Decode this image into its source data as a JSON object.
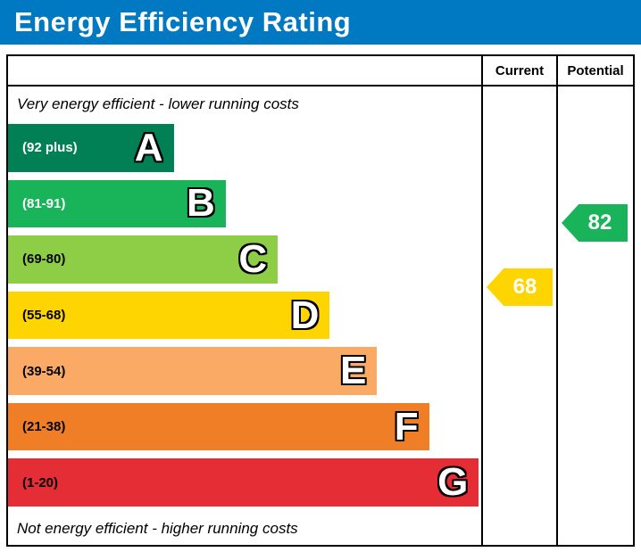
{
  "title_bar": {
    "label": "Energy Efficiency Rating",
    "color": "#0079c2",
    "style": "background:#0079c2"
  },
  "header": {
    "current": "Current",
    "potential": "Potential"
  },
  "notes": {
    "top": "Very energy efficient - lower running costs",
    "bottom": "Not energy efficient - higher running costs"
  },
  "bands": [
    {
      "letter": "A",
      "range": "(92 plus)",
      "color": "#008054",
      "bar_style": "width:35%;background:#008054;color:#ffffff"
    },
    {
      "letter": "B",
      "range": "(81-91)",
      "color": "#19b459",
      "bar_style": "width:46%;background:#19b459;color:#ffffff"
    },
    {
      "letter": "C",
      "range": "(69-80)",
      "color": "#8dce46",
      "bar_style": "width:57%;background:#8dce46;color:#000000"
    },
    {
      "letter": "D",
      "range": "(55-68)",
      "color": "#ffd500",
      "bar_style": "width:68%;background:#ffd500;color:#000000"
    },
    {
      "letter": "E",
      "range": "(39-54)",
      "color": "#fbaa65",
      "bar_style": "width:78%;background:#fbaa65;color:#000000"
    },
    {
      "letter": "F",
      "range": "(21-38)",
      "color": "#f07e26",
      "bar_style": "width:89%;background:#f07e26;color:#000000"
    },
    {
      "letter": "G",
      "range": "(1-20)",
      "color": "#e52d36",
      "bar_style": "width:99.5%;background:#e52d36;color:#000000"
    }
  ],
  "ratings": {
    "current": {
      "value": "68",
      "band": "D",
      "color": "#ffd500",
      "arrow_style": "top:204px;background:#ffd500"
    },
    "potential": {
      "value": "82",
      "band": "B",
      "color": "#19b459",
      "arrow_style": "top:132px;background:#19b459"
    }
  },
  "chart_data": {
    "type": "bar",
    "orientation": "horizontal",
    "title": "Energy Efficiency Rating",
    "categories": [
      "A",
      "B",
      "C",
      "D",
      "E",
      "F",
      "G"
    ],
    "band_ranges": [
      "92 plus",
      "81-91",
      "69-80",
      "55-68",
      "39-54",
      "21-38",
      "1-20"
    ],
    "band_colors": [
      "#008054",
      "#19b459",
      "#8dce46",
      "#ffd500",
      "#fbaa65",
      "#f07e26",
      "#e52d36"
    ],
    "band_relative_widths_pct": [
      35,
      46,
      57,
      68,
      78,
      89,
      99.5
    ],
    "series": [
      {
        "name": "Current",
        "value": 68,
        "band": "D",
        "color": "#ffd500"
      },
      {
        "name": "Potential",
        "value": 82,
        "band": "B",
        "color": "#19b459"
      }
    ],
    "value_scale": [
      1,
      100
    ],
    "top_label": "Very energy efficient - lower running costs",
    "bottom_label": "Not energy efficient - higher running costs",
    "legend_position": "none",
    "grid": false
  }
}
